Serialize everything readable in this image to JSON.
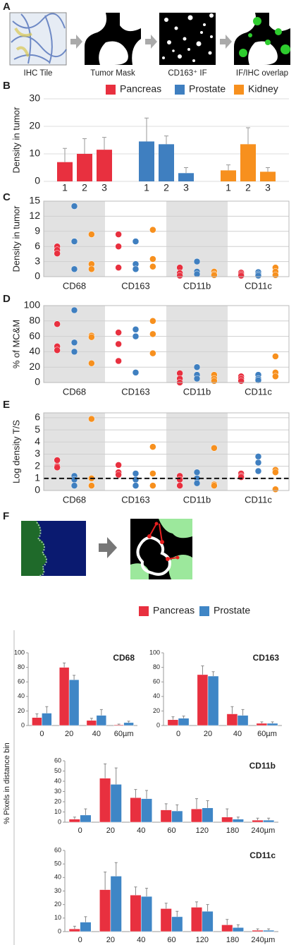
{
  "figure": {
    "panel_labels": [
      "A",
      "B",
      "C",
      "D",
      "E",
      "F"
    ],
    "panel_a_captions": [
      "IHC Tile",
      "Tumor Mask",
      "CD163⁺ IF",
      "IF/IHC overlap"
    ],
    "f_ylabel": "% Pixels in distance bin"
  },
  "chart_data": [
    {
      "type": "bar",
      "ylabel": "Density in tumor",
      "ylim": [
        0,
        30
      ],
      "yticks": [
        0,
        10,
        20,
        30
      ],
      "grid": true,
      "categories": [
        "1",
        "2",
        "3"
      ],
      "series": [
        {
          "name": "Pancreas",
          "color": "#e8303f",
          "values": [
            7,
            10,
            11.5
          ],
          "errors": [
            5,
            5.5,
            4.5
          ]
        },
        {
          "name": "Prostate",
          "color": "#3f7fc0",
          "values": [
            14.5,
            13.5,
            3
          ],
          "errors": [
            8.5,
            3,
            2
          ]
        },
        {
          "name": "Kidney",
          "color": "#f7901e",
          "values": [
            4,
            13.5,
            3.5
          ],
          "errors": [
            2,
            6,
            1.5
          ]
        }
      ]
    },
    {
      "type": "dot",
      "ylabel": "Density in tumor",
      "ylim": [
        0,
        15
      ],
      "yticks": [
        0,
        3,
        6,
        9,
        12,
        15
      ],
      "grid": true,
      "categories": [
        "CD68",
        "CD163",
        "CD11b",
        "CD11c"
      ],
      "series": [
        {
          "name": "Pancreas",
          "color": "#e8303f",
          "values": [
            [
              6,
              5.3,
              4.6
            ],
            [
              8.4,
              6,
              1.8
            ],
            [
              1.8,
              0.7,
              0.2
            ],
            [
              0.8,
              0.5,
              0.2
            ]
          ]
        },
        {
          "name": "Prostate",
          "color": "#3f7fc0",
          "values": [
            [
              14,
              7,
              1.5
            ],
            [
              7,
              2.5,
              1.5
            ],
            [
              3,
              1,
              0.5
            ],
            [
              0.9,
              0.5,
              0.2
            ]
          ]
        },
        {
          "name": "Kidney",
          "color": "#f7901e",
          "values": [
            [
              8.4,
              2.5,
              1.5
            ],
            [
              9.3,
              3.5,
              2
            ],
            [
              1,
              0.5,
              0.3
            ],
            [
              1.8,
              1,
              0.3
            ]
          ]
        }
      ]
    },
    {
      "type": "dot",
      "ylabel": "% of MC&M",
      "ylim": [
        0,
        100
      ],
      "yticks": [
        0,
        20,
        40,
        60,
        80,
        100
      ],
      "grid": true,
      "categories": [
        "CD68",
        "CD163",
        "CD11b",
        "CD11c"
      ],
      "series": [
        {
          "name": "Pancreas",
          "color": "#e8303f",
          "values": [
            [
              76,
              47,
              42
            ],
            [
              65,
              50,
              28
            ],
            [
              12,
              5,
              0
            ],
            [
              8,
              5,
              2
            ]
          ]
        },
        {
          "name": "Prostate",
          "color": "#3f7fc0",
          "values": [
            [
              94,
              52,
              40
            ],
            [
              69,
              60,
              13
            ],
            [
              20,
              10,
              5
            ],
            [
              10,
              5,
              3
            ]
          ]
        },
        {
          "name": "Kidney",
          "color": "#f7901e",
          "values": [
            [
              61,
              59,
              25
            ],
            [
              80,
              63,
              38
            ],
            [
              10,
              5,
              2
            ],
            [
              34,
              13,
              8
            ]
          ]
        }
      ]
    },
    {
      "type": "dot",
      "ylabel": "Log density T/S",
      "ylim": [
        0,
        6.4
      ],
      "yticks": [
        0,
        1,
        2,
        3,
        4,
        5,
        6
      ],
      "grid": true,
      "reference_line": 1,
      "categories": [
        "CD68",
        "CD163",
        "CD11b",
        "CD11c"
      ],
      "series": [
        {
          "name": "Pancreas",
          "color": "#e8303f",
          "values": [
            [
              2.5,
              2.0,
              1.9
            ],
            [
              2.1,
              1.5,
              1.3
            ],
            [
              1.2,
              0.9,
              0.4
            ],
            [
              1.4,
              1.2,
              1.1
            ]
          ]
        },
        {
          "name": "Prostate",
          "color": "#3f7fc0",
          "values": [
            [
              1.2,
              0.9,
              0.4
            ],
            [
              1.4,
              0.9,
              0.4
            ],
            [
              1.5,
              1.0,
              0.6
            ],
            [
              2.8,
              2.3,
              1.6
            ]
          ]
        },
        {
          "name": "Kidney",
          "color": "#f7901e",
          "values": [
            [
              5.9,
              1,
              0.4
            ],
            [
              3.6,
              1.4,
              0.4
            ],
            [
              3.5,
              0.5,
              0.4
            ],
            [
              1.7,
              1.5,
              0.1
            ]
          ]
        }
      ]
    },
    {
      "type": "histogram",
      "title": "CD68",
      "ylim": [
        0,
        100
      ],
      "yticks": [
        0,
        20,
        40,
        60,
        80,
        100
      ],
      "categories": [
        "0",
        "20",
        "40",
        "60µm"
      ],
      "series": [
        {
          "name": "Pancreas",
          "color": "#e8303f",
          "values": [
            11,
            80,
            7,
            1
          ],
          "errors": [
            5,
            6,
            3,
            1
          ]
        },
        {
          "name": "Prostate",
          "color": "#3f86c6",
          "values": [
            17,
            63,
            14,
            4
          ],
          "errors": [
            9,
            6,
            8,
            2
          ]
        }
      ]
    },
    {
      "type": "histogram",
      "title": "CD163",
      "ylim": [
        0,
        100
      ],
      "yticks": [
        0,
        20,
        40,
        60,
        80,
        100
      ],
      "categories": [
        "0",
        "20",
        "40",
        "60µm"
      ],
      "series": [
        {
          "name": "Pancreas",
          "color": "#e8303f",
          "values": [
            8,
            70,
            16,
            3
          ],
          "errors": [
            4,
            12,
            10,
            2
          ]
        },
        {
          "name": "Prostate",
          "color": "#3f86c6",
          "values": [
            10,
            68,
            14,
            3
          ],
          "errors": [
            3,
            6,
            8,
            2
          ]
        }
      ]
    },
    {
      "type": "histogram",
      "title": "CD11b",
      "ylim": [
        0,
        60
      ],
      "yticks": [
        0,
        10,
        20,
        30,
        40,
        50,
        60
      ],
      "categories": [
        "0",
        "20",
        "40",
        "60",
        "120",
        "180",
        "240µm"
      ],
      "series": [
        {
          "name": "Pancreas",
          "color": "#e8303f",
          "values": [
            3,
            43,
            24,
            12,
            13,
            5,
            2
          ],
          "errors": [
            2,
            14,
            8,
            6,
            10,
            8,
            2
          ]
        },
        {
          "name": "Prostate",
          "color": "#3f86c6",
          "values": [
            7,
            37,
            23,
            11,
            14,
            3,
            2
          ],
          "errors": [
            6,
            16,
            8,
            6,
            7,
            2,
            2
          ]
        }
      ]
    },
    {
      "type": "histogram",
      "title": "CD11c",
      "ylim": [
        0,
        60
      ],
      "yticks": [
        0,
        10,
        20,
        30,
        40,
        50,
        60
      ],
      "categories": [
        "0",
        "20",
        "40",
        "60",
        "120",
        "180",
        "240µm"
      ],
      "series": [
        {
          "name": "Pancreas",
          "color": "#e8303f",
          "values": [
            2,
            31,
            27,
            17,
            18,
            5,
            1
          ],
          "errors": [
            2,
            13,
            6,
            4,
            4,
            4,
            1
          ]
        },
        {
          "name": "Prostate",
          "color": "#3f86c6",
          "values": [
            7,
            41,
            26,
            11,
            15,
            3,
            1
          ],
          "errors": [
            4,
            10,
            6,
            4,
            5,
            2,
            1
          ]
        }
      ]
    }
  ]
}
